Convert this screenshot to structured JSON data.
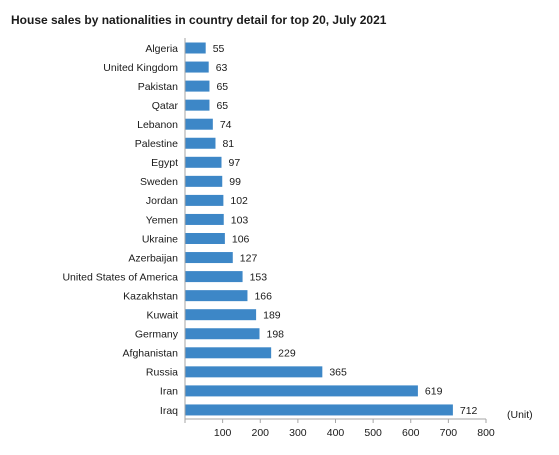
{
  "chart_data": {
    "type": "bar",
    "orientation": "horizontal",
    "title": "House sales by nationalities in country detail for top 20, July 2021",
    "categories": [
      "Algeria",
      "United Kingdom",
      "Pakistan",
      "Qatar",
      "Lebanon",
      "Palestine",
      "Egypt",
      "Sweden",
      "Jordan",
      "Yemen",
      "Ukraine",
      "Azerbaijan",
      "United States of America",
      "Kazakhstan",
      "Kuwait",
      "Germany",
      "Afghanistan",
      "Russia",
      "Iran",
      "Iraq"
    ],
    "values": [
      55,
      63,
      65,
      65,
      74,
      81,
      97,
      99,
      102,
      103,
      106,
      127,
      153,
      166,
      189,
      198,
      229,
      365,
      619,
      712
    ],
    "value_labels": [
      "55",
      "63",
      "65",
      "65",
      "74",
      "81",
      "97",
      "99",
      "102",
      "103",
      "106",
      "127",
      "153",
      "166",
      "189",
      "198",
      "229",
      "365",
      "619",
      "712"
    ],
    "xticks": [
      "100",
      "200",
      "300",
      "400",
      "500",
      "600",
      "700",
      "800"
    ],
    "xtick_values": [
      100,
      200,
      300,
      400,
      500,
      600,
      700,
      800
    ],
    "xlim": [
      0,
      800
    ],
    "unit": "(Unit)",
    "grid": false,
    "bar_color": "#3d87c7",
    "axis_color": "#a6a6a6"
  }
}
